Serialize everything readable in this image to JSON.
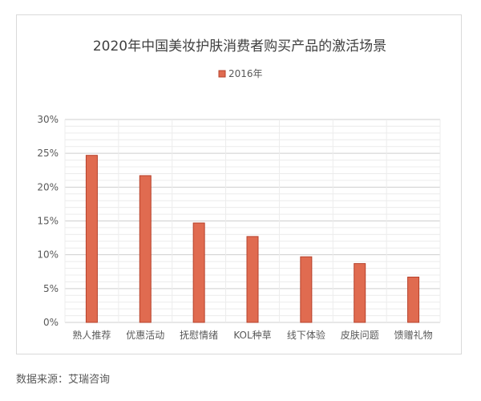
{
  "chart_data": {
    "type": "bar",
    "title": "2020年中国美妆护肤消费者购买产品的激活场景",
    "categories": [
      "熟人推荐",
      "优惠活动",
      "抚慰情绪",
      "KOL种草",
      "线下体验",
      "皮肤问题",
      "馈赠礼物"
    ],
    "series": [
      {
        "name": "2016年",
        "values": [
          24.7,
          21.7,
          14.7,
          12.7,
          9.7,
          8.7,
          6.7
        ],
        "color": "#e06b50",
        "edge_color": "#b6412b"
      }
    ],
    "yticks": [
      "0%",
      "5%",
      "10%",
      "15%",
      "20%",
      "25%",
      "30%"
    ],
    "ylim": [
      0,
      30
    ],
    "ylabel": "",
    "xlabel": "",
    "grid": true,
    "legend_position": "top"
  },
  "source": "数据来源：艾瑞咨询"
}
